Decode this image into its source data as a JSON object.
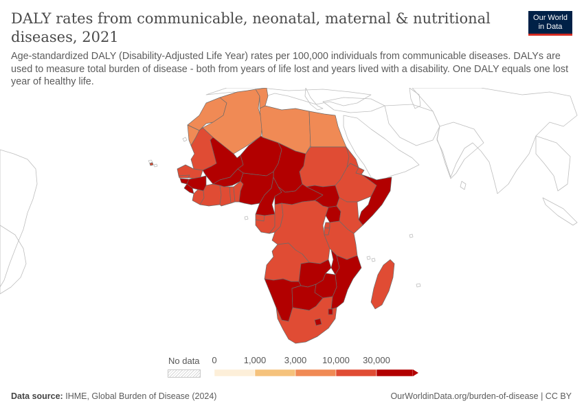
{
  "title": "DALY rates from communicable, neonatal, maternal & nutritional diseases, 2021",
  "subtitle": "Age-standardized DALY (Disability-Adjusted Life Year) rates per 100,000 individuals from communicable diseases. DALYs are used to measure total burden of disease - both from years of life lost and years lived with a disability. One DALY equals one lost year of healthy life.",
  "logo": {
    "line1": "Our World",
    "line2": "in Data"
  },
  "legend": {
    "no_data_label": "No data",
    "ticks": [
      "0",
      "1,000",
      "3,000",
      "10,000",
      "30,000"
    ],
    "colors": [
      "#fdefd9",
      "#f5c27c",
      "#f08a55",
      "#e04c34",
      "#b20000"
    ]
  },
  "colors": {
    "no_data": "#ffffff",
    "bin_0_1000": "#fdefd9",
    "bin_1000_3000": "#f5c27c",
    "bin_3000_10000": "#f08a55",
    "bin_10000_30000": "#e04c34",
    "bin_30000_plus": "#b20000"
  },
  "chart_data": {
    "type": "choropleth",
    "metric": "Age-standardized DALY rate per 100,000",
    "year": 2021,
    "bins": [
      {
        "range": [
          0,
          1000
        ],
        "color": "#fdefd9"
      },
      {
        "range": [
          1000,
          3000
        ],
        "color": "#f5c27c"
      },
      {
        "range": [
          3000,
          10000
        ],
        "color": "#f08a55"
      },
      {
        "range": [
          10000,
          30000
        ],
        "color": "#e04c34"
      },
      {
        "range": [
          30000,
          null
        ],
        "color": "#b20000"
      }
    ],
    "regions": [
      {
        "name": "Morocco",
        "bin": 2
      },
      {
        "name": "Algeria",
        "bin": 2
      },
      {
        "name": "Tunisia",
        "bin": 2
      },
      {
        "name": "Libya",
        "bin": 2
      },
      {
        "name": "Egypt",
        "bin": 2
      },
      {
        "name": "Western Sahara",
        "bin": 2
      },
      {
        "name": "Mauritania",
        "bin": 3
      },
      {
        "name": "Mali",
        "bin": 4
      },
      {
        "name": "Niger",
        "bin": 4
      },
      {
        "name": "Chad",
        "bin": 4
      },
      {
        "name": "Sudan",
        "bin": 3
      },
      {
        "name": "Eritrea",
        "bin": 3
      },
      {
        "name": "Ethiopia",
        "bin": 3
      },
      {
        "name": "Djibouti",
        "bin": 3
      },
      {
        "name": "Somalia",
        "bin": 4
      },
      {
        "name": "Senegal",
        "bin": 3
      },
      {
        "name": "Gambia",
        "bin": 3
      },
      {
        "name": "Guinea-Bissau",
        "bin": 4
      },
      {
        "name": "Guinea",
        "bin": 4
      },
      {
        "name": "Sierra Leone",
        "bin": 4
      },
      {
        "name": "Liberia",
        "bin": 3
      },
      {
        "name": "Cote d'Ivoire",
        "bin": 3
      },
      {
        "name": "Ghana",
        "bin": 3
      },
      {
        "name": "Burkina Faso",
        "bin": 4
      },
      {
        "name": "Togo",
        "bin": 3
      },
      {
        "name": "Benin",
        "bin": 3
      },
      {
        "name": "Nigeria",
        "bin": 4
      },
      {
        "name": "Cameroon",
        "bin": 4
      },
      {
        "name": "Central African Republic",
        "bin": 4
      },
      {
        "name": "South Sudan",
        "bin": 4
      },
      {
        "name": "Equatorial Guinea",
        "bin": 3
      },
      {
        "name": "Gabon",
        "bin": 3
      },
      {
        "name": "Congo",
        "bin": 3
      },
      {
        "name": "Democratic Republic of Congo",
        "bin": 3
      },
      {
        "name": "Uganda",
        "bin": 4
      },
      {
        "name": "Kenya",
        "bin": 3
      },
      {
        "name": "Rwanda",
        "bin": 3
      },
      {
        "name": "Burundi",
        "bin": 3
      },
      {
        "name": "Tanzania",
        "bin": 3
      },
      {
        "name": "Angola",
        "bin": 3
      },
      {
        "name": "Zambia",
        "bin": 4
      },
      {
        "name": "Malawi",
        "bin": 4
      },
      {
        "name": "Mozambique",
        "bin": 4
      },
      {
        "name": "Zimbabwe",
        "bin": 4
      },
      {
        "name": "Namibia",
        "bin": 4
      },
      {
        "name": "Botswana",
        "bin": 4
      },
      {
        "name": "South Africa",
        "bin": 3
      },
      {
        "name": "Lesotho",
        "bin": 4
      },
      {
        "name": "Eswatini",
        "bin": 4
      },
      {
        "name": "Madagascar",
        "bin": 3
      },
      {
        "name": "Cape Verde",
        "bin": 3
      }
    ]
  },
  "footer": {
    "source_label": "Data source:",
    "source_text": "IHME, Global Burden of Disease (2024)",
    "right": "OurWorldinData.org/burden-of-disease | CC BY"
  }
}
